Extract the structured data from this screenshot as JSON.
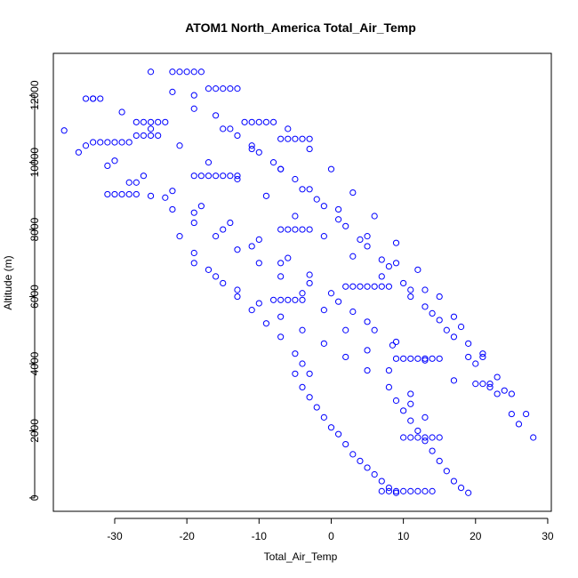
{
  "chart_data": {
    "type": "scatter",
    "title": "ATOM1 North_America Total_Air_Temp",
    "xlabel": "Total_Air_Temp",
    "ylabel": "Altitude (m)",
    "xlim": [
      -38.5,
      30.5
    ],
    "ylim": [
      -400,
      13250
    ],
    "xticks": [
      -30,
      -20,
      -10,
      0,
      10,
      20,
      30
    ],
    "yticks": [
      0,
      2000,
      4000,
      6000,
      8000,
      10000,
      12000
    ],
    "xtick_labels": [
      "-30",
      "-20",
      "-10",
      "0",
      "10",
      "20",
      "30"
    ],
    "ytick_labels": [
      "0",
      "2000",
      "4000",
      "6000",
      "8000",
      "10000",
      "12000"
    ],
    "grid": false,
    "legend": "none",
    "marker": "open-circle",
    "color": "#0000ff",
    "series": [
      {
        "x": [
          -37,
          -34,
          -30,
          -26,
          -22,
          -18,
          -14,
          -10,
          -6,
          -3,
          0,
          3,
          6,
          8.5
        ],
        "y": [
          10950,
          10500,
          10050,
          9600,
          9150,
          8700,
          8200,
          7700,
          7150,
          6650,
          6100,
          5550,
          5000,
          4550
        ]
      },
      {
        "x": [
          -35,
          -31,
          -27,
          -23,
          -19,
          -15,
          -11,
          -7,
          -3,
          1,
          5,
          9,
          13,
          17
        ],
        "y": [
          10300,
          9900,
          9400,
          8950,
          8500,
          8000,
          7500,
          7000,
          6400,
          5850,
          5250,
          4650,
          4100,
          3500
        ]
      },
      {
        "x": [
          -33,
          -29,
          -25,
          -21,
          -17,
          -13,
          -9,
          -5,
          -1,
          3,
          7,
          11,
          15,
          19,
          23,
          27
        ],
        "y": [
          11900,
          11500,
          11000,
          10500,
          10000,
          9500,
          9000,
          8400,
          7800,
          7200,
          6600,
          6000,
          5300,
          4600,
          3600,
          2500
        ]
      },
      {
        "x": [
          -25,
          -22,
          -19,
          -15,
          -11,
          -7,
          -3,
          1,
          5,
          9,
          13,
          17,
          21,
          25,
          28
        ],
        "y": [
          12700,
          12100,
          11600,
          11000,
          10400,
          9800,
          9200,
          8600,
          7800,
          7000,
          6200,
          5400,
          4300,
          3100,
          1800
        ]
      },
      {
        "x": [
          -19,
          -16,
          -13,
          -10,
          -7,
          -4,
          -1,
          2,
          5,
          8,
          11,
          14,
          17,
          20,
          23,
          26
        ],
        "y": [
          12000,
          11400,
          10800,
          10300,
          9800,
          9200,
          8700,
          8100,
          7500,
          6900,
          6200,
          5500,
          4800,
          4000,
          3100,
          2200
        ]
      },
      {
        "x": [
          -14,
          -11,
          -8,
          -5,
          -2,
          1,
          4,
          7,
          10,
          13,
          16,
          19,
          22,
          25
        ],
        "y": [
          11000,
          10500,
          10000,
          9500,
          8900,
          8300,
          7700,
          7100,
          6400,
          5700,
          5000,
          4200,
          3300,
          2500
        ]
      },
      {
        "x": [
          -28,
          -25,
          -22,
          -19,
          -16,
          -13,
          -10,
          -7,
          -4,
          -1,
          2,
          5,
          8,
          11,
          13
        ],
        "y": [
          9400,
          9000,
          8600,
          8200,
          7800,
          7400,
          7000,
          6600,
          6100,
          5600,
          5000,
          4400,
          3800,
          3100,
          2400
        ]
      },
      {
        "x": [
          -21,
          -19,
          -17,
          -15,
          -13,
          -11,
          -9,
          -7,
          -5,
          -4,
          -3
        ],
        "y": [
          7800,
          7300,
          6800,
          6400,
          6000,
          5600,
          5200,
          4800,
          4300,
          4000,
          3700
        ]
      },
      {
        "x": [
          -5,
          -4,
          -3,
          -2,
          -1,
          0,
          1,
          2,
          3,
          4,
          5,
          6,
          7,
          8,
          9
        ],
        "y": [
          3700,
          3300,
          3000,
          2700,
          2400,
          2100,
          1900,
          1600,
          1300,
          1100,
          900,
          700,
          500,
          300,
          150
        ]
      },
      {
        "x": [
          -19,
          -16,
          -13,
          -10,
          -7,
          -4,
          -1,
          2,
          5,
          8,
          11
        ],
        "y": [
          7000,
          6600,
          6200,
          5800,
          5400,
          5000,
          4600,
          4200,
          3800,
          3300,
          2800
        ]
      },
      {
        "x": [
          -6,
          -3,
          0,
          3,
          6,
          9,
          12,
          15,
          18,
          21,
          24
        ],
        "y": [
          11000,
          10400,
          9800,
          9100,
          8400,
          7600,
          6800,
          6000,
          5100,
          4200,
          3200
        ]
      },
      {
        "x": [
          9,
          10,
          11,
          12,
          13,
          14,
          15,
          16,
          17,
          18,
          19
        ],
        "y": [
          2900,
          2600,
          2300,
          2000,
          1700,
          1400,
          1100,
          800,
          500,
          300,
          150
        ]
      },
      {
        "x": [
          -22,
          -21,
          -20,
          -19,
          -18,
          -17,
          -16,
          -15,
          -14,
          -13,
          -12,
          -11,
          -10,
          -9,
          -8,
          -7,
          -6,
          -5,
          -4,
          -3
        ],
        "y": [
          12700,
          12700,
          12700,
          12700,
          12700,
          12200,
          12200,
          12200,
          12200,
          12200,
          11200,
          11200,
          11200,
          11200,
          11200,
          10700,
          10700,
          10700,
          10700,
          10700
        ]
      },
      {
        "x": [
          -27,
          -26,
          -25,
          -24,
          -23,
          -33,
          -32,
          -31,
          -30,
          -29,
          -28,
          -27,
          -26,
          -25,
          -24
        ],
        "y": [
          11200,
          11200,
          11200,
          11200,
          11200,
          10600,
          10600,
          10600,
          10600,
          10600,
          10600,
          10800,
          10800,
          10800,
          10800
        ]
      },
      {
        "x": [
          -31,
          -30,
          -29,
          -28,
          -27,
          -19,
          -18,
          -17,
          -16,
          -15,
          -14,
          -13
        ],
        "y": [
          9050,
          9050,
          9050,
          9050,
          9050,
          9600,
          9600,
          9600,
          9600,
          9600,
          9600,
          9600
        ]
      },
      {
        "x": [
          -7,
          -6,
          -5,
          -4,
          -3,
          2,
          3,
          4,
          5,
          6,
          7,
          8,
          -8,
          -7,
          -6,
          -5,
          -4
        ],
        "y": [
          8000,
          8000,
          8000,
          8000,
          8000,
          6300,
          6300,
          6300,
          6300,
          6300,
          6300,
          6300,
          5900,
          5900,
          5900,
          5900,
          5900
        ]
      },
      {
        "x": [
          9,
          10,
          11,
          12,
          13,
          14,
          15,
          10,
          11,
          12,
          13,
          14,
          15,
          20,
          21,
          22
        ],
        "y": [
          4150,
          4150,
          4150,
          4150,
          4150,
          4150,
          4150,
          1800,
          1800,
          1800,
          1800,
          1800,
          1800,
          3400,
          3400,
          3400
        ]
      },
      {
        "x": [
          7,
          8,
          9,
          10,
          11,
          12,
          13,
          14,
          -34,
          -33,
          -32
        ],
        "y": [
          200,
          200,
          200,
          200,
          200,
          200,
          200,
          200,
          11900,
          11900,
          11900
        ]
      }
    ]
  }
}
